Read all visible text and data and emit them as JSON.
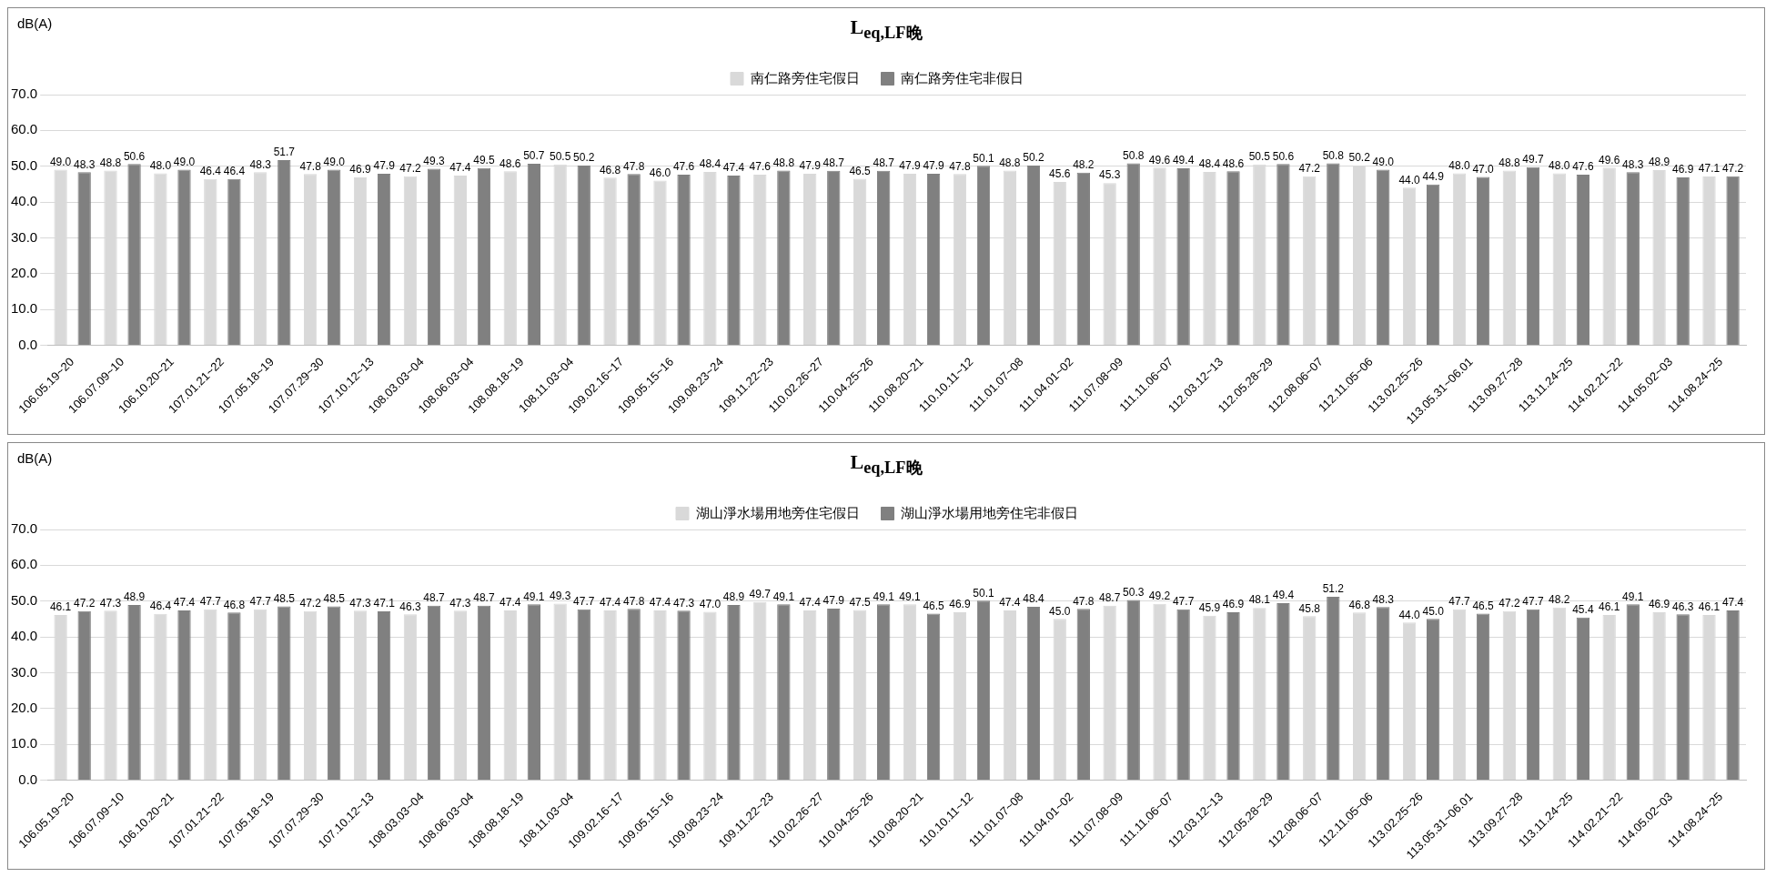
{
  "chart_data": [
    {
      "type": "bar",
      "title": "L$_{eq,LF晚}$",
      "ylabel": "dB(A)",
      "categories": [
        "106.05.19~20",
        "106.07.09~10",
        "106.10.20~21",
        "107.01.21~22",
        "107.05.18~19",
        "107.07.29~30",
        "107.10.12~13",
        "108.03.03~04",
        "108.06.03~04",
        "108.08.18~19",
        "108.11.03~04",
        "109.02.16~17",
        "109.05.15~16",
        "109.08.23~24",
        "109.11.22~23",
        "110.02.26~27",
        "110.04.25~26",
        "110.08.20~21",
        "110.10.11~12",
        "111.01.07~08",
        "111.04.01~02",
        "111.07.08~09",
        "111.11.06~07",
        "112.03.12~13",
        "112.05.28~29",
        "112.08.06~07",
        "112.11.05~06",
        "113.02.25~26",
        "113.05.31~06.01",
        "113.09.27~28",
        "113.11.24~25",
        "114.02.21~22",
        "114.05.02~03",
        "114.08.24~25"
      ],
      "series": [
        {
          "name": "南仁路旁住宅假日",
          "color": "#d9d9d9",
          "values": [
            49.0,
            48.8,
            48.0,
            46.4,
            48.3,
            47.8,
            46.9,
            47.2,
            47.4,
            48.6,
            50.5,
            46.8,
            46.0,
            48.4,
            47.6,
            47.9,
            46.5,
            47.9,
            47.8,
            48.8,
            45.6,
            45.3,
            49.6,
            48.4,
            50.5,
            47.2,
            50.2,
            44.0,
            48.0,
            48.8,
            48.0,
            49.6,
            48.9,
            47.1
          ],
          "value_labels": [
            "49.0",
            "48.8",
            "48.0",
            "46.4",
            "48.3",
            "47.8",
            "46.9",
            "47.2",
            "47.4",
            "48.6",
            "50.5",
            "46.8",
            "46.0",
            "48.4",
            "47.6",
            "47.9",
            "46.5",
            "47.9",
            "47.8",
            "48.8",
            "45.6",
            "45.3",
            "49.6",
            "48.4",
            "50.5",
            "47.2",
            "50.2",
            "44.0",
            "48.0",
            "48.8",
            "48.0",
            "49.6",
            "48.9",
            "47.1"
          ]
        },
        {
          "name": "南仁路旁住宅非假日",
          "color": "#808080",
          "values": [
            48.3,
            50.6,
            49.0,
            46.4,
            51.7,
            49.0,
            47.9,
            49.3,
            49.5,
            50.7,
            50.2,
            47.8,
            47.6,
            47.4,
            48.8,
            48.7,
            48.7,
            47.9,
            50.1,
            50.2,
            48.2,
            50.8,
            49.4,
            48.6,
            50.6,
            50.8,
            49.0,
            44.9,
            47.0,
            49.7,
            47.6,
            48.3,
            46.9,
            47.2
          ],
          "value_labels": [
            "48.3",
            "50.6",
            "49.0",
            "46.4",
            "51.7",
            "49.0",
            "47.9",
            "49.3",
            "49.5",
            "50.7",
            "50.2",
            "47.8",
            "47.6",
            "47.4",
            "48.8",
            "48.7",
            "48.7",
            "47.9",
            "50.1",
            "50.2",
            "48.2",
            "50.8",
            "49.4",
            "48.6",
            "50.6",
            "50.8",
            "49.0",
            "44.9",
            "47.0",
            "49.7",
            "47.6",
            "48.3",
            "46.9",
            "47.2"
          ]
        }
      ],
      "ylim": [
        0,
        70
      ],
      "yticks": [
        {
          "value": 0,
          "label": "0.0"
        },
        {
          "value": 10,
          "label": "10.0"
        },
        {
          "value": 20,
          "label": "20.0"
        },
        {
          "value": 30,
          "label": "30.0"
        },
        {
          "value": 40,
          "label": "40.0"
        },
        {
          "value": 50,
          "label": "50.0"
        },
        {
          "value": 60,
          "label": "60.0"
        },
        {
          "value": 70,
          "label": "70.0"
        }
      ],
      "grid": "y",
      "legend": "top"
    },
    {
      "type": "bar",
      "title": "L$_{eq,LF晚}$",
      "ylabel": "dB(A)",
      "categories": [
        "106.05.19~20",
        "106.07.09~10",
        "106.10.20~21",
        "107.01.21~22",
        "107.05.18~19",
        "107.07.29~30",
        "107.10.12~13",
        "108.03.03~04",
        "108.06.03~04",
        "108.08.18~19",
        "108.11.03~04",
        "109.02.16~17",
        "109.05.15~16",
        "109.08.23~24",
        "109.11.22~23",
        "110.02.26~27",
        "110.04.25~26",
        "110.08.20~21",
        "110.10.11~12",
        "111.01.07~08",
        "111.04.01~02",
        "111.07.08~09",
        "111.11.06~07",
        "112.03.12~13",
        "112.05.28~29",
        "112.08.06~07",
        "112.11.05~06",
        "113.02.25~26",
        "113.05.31~06.01",
        "113.09.27~28",
        "113.11.24~25",
        "114.02.21~22",
        "114.05.02~03",
        "114.08.24~25"
      ],
      "series": [
        {
          "name": "湖山淨水場用地旁住宅假日",
          "color": "#d9d9d9",
          "values": [
            46.1,
            47.3,
            46.4,
            47.7,
            47.7,
            47.2,
            47.3,
            46.3,
            47.3,
            47.4,
            49.3,
            47.4,
            47.4,
            47.0,
            49.7,
            47.4,
            47.5,
            49.1,
            46.9,
            47.4,
            45.0,
            48.7,
            49.2,
            45.9,
            48.1,
            45.8,
            46.8,
            44.0,
            47.7,
            47.2,
            48.2,
            46.1,
            46.9,
            46.1
          ],
          "value_labels": [
            "46.1",
            "47.3",
            "46.4",
            "47.7",
            "47.7",
            "47.2",
            "47.3",
            "46.3",
            "47.3",
            "47.4",
            "49.3",
            "47.4",
            "47.4",
            "47.0",
            "49.7",
            "47.4",
            "47.5",
            "49.1",
            "46.9",
            "47.4",
            "45.0",
            "48.7",
            "49.2",
            "45.9",
            "48.1",
            "45.8",
            "46.8",
            "44.0",
            "47.7",
            "47.2",
            "48.2",
            "46.1",
            "46.9",
            "46.1"
          ]
        },
        {
          "name": "湖山淨水場用地旁住宅非假日",
          "color": "#808080",
          "values": [
            47.2,
            48.9,
            47.4,
            46.8,
            48.5,
            48.5,
            47.1,
            48.7,
            48.7,
            49.1,
            47.7,
            47.8,
            47.3,
            48.9,
            49.1,
            47.9,
            49.1,
            46.5,
            50.1,
            48.4,
            47.8,
            50.3,
            47.7,
            46.9,
            49.4,
            51.2,
            48.3,
            45.0,
            46.5,
            47.7,
            45.4,
            49.1,
            46.3,
            47.4
          ],
          "value_labels": [
            "47.2",
            "48.9",
            "47.4",
            "46.8",
            "48.5",
            "48.5",
            "47.1",
            "48.7",
            "48.7",
            "49.1",
            "47.7",
            "47.8",
            "47.3",
            "48.9",
            "49.1",
            "47.9",
            "49.1",
            "46.5",
            "50.1",
            "48.4",
            "47.8",
            "50.3",
            "47.7",
            "46.9",
            "49.4",
            "51.2",
            "48.3",
            "45.0",
            "46.5",
            "47.7",
            "45.4",
            "49.1",
            "46.3",
            "47.4"
          ]
        }
      ],
      "ylim": [
        0,
        70
      ],
      "yticks": [
        {
          "value": 0,
          "label": "0.0"
        },
        {
          "value": 10,
          "label": "10.0"
        },
        {
          "value": 20,
          "label": "20.0"
        },
        {
          "value": 30,
          "label": "30.0"
        },
        {
          "value": 40,
          "label": "40.0"
        },
        {
          "value": 50,
          "label": "50.0"
        },
        {
          "value": 60,
          "label": "60.0"
        },
        {
          "value": 70,
          "label": "70.0"
        }
      ],
      "grid": "y",
      "legend": "top"
    }
  ]
}
